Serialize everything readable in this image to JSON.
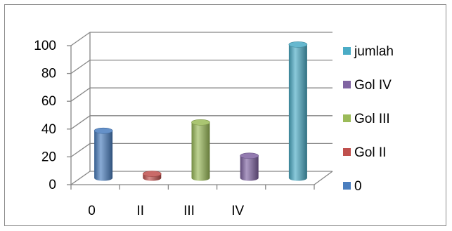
{
  "chart_data": {
    "type": "bar",
    "style": "3d-cylinder",
    "categories": [
      "0",
      "II",
      "III",
      "IV",
      ""
    ],
    "values": [
      34,
      3,
      40,
      16,
      96
    ],
    "bar_colors": [
      "#4a7ebf",
      "#c0504d",
      "#9bbb59",
      "#8064a2",
      "#4bacc6"
    ],
    "ylim": [
      0,
      100
    ],
    "y_ticks": [
      "0",
      "20",
      "40",
      "60",
      "80",
      "100"
    ],
    "grid": true,
    "legend": {
      "placement": "right",
      "entries": [
        {
          "label": "jumlah",
          "color": "#4bacc6"
        },
        {
          "label": "Gol IV",
          "color": "#8064a2"
        },
        {
          "label": "Gol III",
          "color": "#9bbb59"
        },
        {
          "label": "Gol II",
          "color": "#c0504d"
        },
        {
          "label": "0",
          "color": "#4a7ebf"
        }
      ]
    }
  }
}
